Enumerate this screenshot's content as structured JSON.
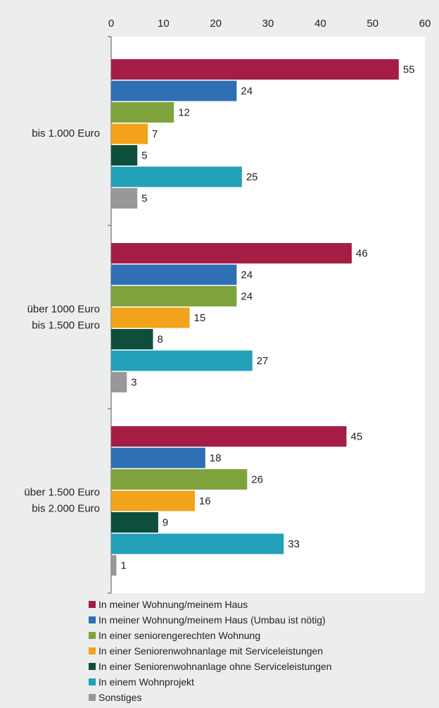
{
  "chart_data": {
    "type": "bar",
    "orientation": "horizontal",
    "categories": [
      "bis 1.000 Euro",
      "über 1000 Euro\nbis 1.500 Euro",
      "über 1.500 Euro\nbis 2.000 Euro"
    ],
    "series": [
      {
        "name": "In meiner Wohnung/meinem Haus",
        "color": "#a51d45",
        "values": [
          55,
          46,
          45
        ]
      },
      {
        "name": "In meiner Wohnung/meinem Haus (Umbau ist nötig)",
        "color": "#2f6fb3",
        "values": [
          24,
          24,
          18
        ]
      },
      {
        "name": "In einer seniorengerechten Wohnung",
        "color": "#7fa33c",
        "values": [
          12,
          24,
          26
        ]
      },
      {
        "name": "In einer Seniorenwohnanlage mit Serviceleistungen",
        "color": "#f2a31b",
        "values": [
          7,
          15,
          16
        ]
      },
      {
        "name": "In einer Seniorenwohnanlage ohne Serviceleistungen",
        "color": "#0d4f3c",
        "values": [
          5,
          8,
          9
        ]
      },
      {
        "name": "In einem Wohnprojekt",
        "color": "#22a0b8",
        "values": [
          25,
          27,
          33
        ]
      },
      {
        "name": "Sonstiges",
        "color": "#989898",
        "values": [
          5,
          3,
          1
        ]
      }
    ],
    "xlim": [
      0,
      60
    ],
    "ticks": [
      0,
      10,
      20,
      30,
      40,
      50,
      60
    ],
    "axis_position": "top",
    "legend_position": "bottom",
    "grid": false,
    "title": "",
    "xlabel": "",
    "ylabel": ""
  }
}
